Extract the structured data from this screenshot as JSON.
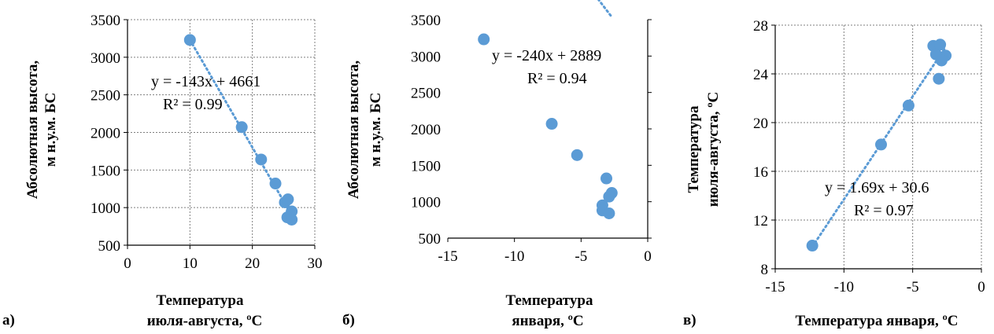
{
  "chart_data": [
    {
      "type": "scatter",
      "panel_label": "а)",
      "xlabel": [
        "Температура",
        "июля-августа, ºС"
      ],
      "ylabel": [
        "Абсолютная высота,",
        "м н.у.м. БС"
      ],
      "xlim": [
        0,
        30
      ],
      "ylim": [
        500,
        3500
      ],
      "xticks": [
        0,
        10,
        20,
        30
      ],
      "yticks": [
        500,
        1000,
        1500,
        2000,
        2500,
        3000,
        3500
      ],
      "xtick_labels": [
        "0",
        "10",
        "20",
        "30"
      ],
      "ytick_labels": [
        "500",
        "1000",
        "1500",
        "2000",
        "2500",
        "3000",
        "3500"
      ],
      "grid": true,
      "points": [
        {
          "x": 10,
          "y": 3230
        },
        {
          "x": 18.3,
          "y": 2070
        },
        {
          "x": 21.4,
          "y": 1640
        },
        {
          "x": 23.7,
          "y": 1320
        },
        {
          "x": 25.2,
          "y": 1070
        },
        {
          "x": 25.7,
          "y": 1110
        },
        {
          "x": 26.3,
          "y": 950
        },
        {
          "x": 25.6,
          "y": 870
        },
        {
          "x": 26.3,
          "y": 840
        }
      ],
      "trendline": {
        "slope": -143,
        "intercept": 4661,
        "x_range": [
          10,
          26.3
        ]
      },
      "equation": "y = -143x + 4661",
      "r2": "R² = 0.99"
    },
    {
      "type": "scatter",
      "panel_label": "б)",
      "xlabel": [
        "Температура",
        "января, ºС"
      ],
      "ylabel": [
        "Абсолютная высота,",
        "м н.у.м. БС"
      ],
      "xlim": [
        -15,
        0
      ],
      "ylim": [
        500,
        3500
      ],
      "xticks": [
        -15,
        -10,
        -5,
        0
      ],
      "yticks": [
        500,
        1000,
        1500,
        2000,
        2500,
        3000,
        3500
      ],
      "xtick_labels": [
        "-15",
        "-10",
        "-5",
        "0"
      ],
      "ytick_labels": [
        "500",
        "1000",
        "1500",
        "2000",
        "2500",
        "3000",
        "3500"
      ],
      "grid": false,
      "points": [
        {
          "x": -12.3,
          "y": 3230
        },
        {
          "x": -7.2,
          "y": 2070
        },
        {
          "x": -5.3,
          "y": 1640
        },
        {
          "x": -3.1,
          "y": 1320
        },
        {
          "x": -2.7,
          "y": 1120
        },
        {
          "x": -2.9,
          "y": 1070
        },
        {
          "x": -3.4,
          "y": 950
        },
        {
          "x": -3.4,
          "y": 880
        },
        {
          "x": -2.9,
          "y": 840
        }
      ],
      "trendline": {
        "slope": -240,
        "intercept": 2889,
        "x_range": [
          -12.3,
          -2.7
        ]
      },
      "equation": "y = -240x + 2889",
      "r2": "R² = 0.94"
    },
    {
      "type": "scatter",
      "panel_label": "в)",
      "xlabel": [
        "Температура января, ºС"
      ],
      "ylabel": [
        "Температура",
        "июля-августа, ºС"
      ],
      "xlim": [
        -15,
        0
      ],
      "ylim": [
        8,
        28
      ],
      "xticks": [
        -15,
        -10,
        -5,
        0
      ],
      "yticks": [
        8,
        12,
        16,
        20,
        24,
        28
      ],
      "xtick_labels": [
        "-15",
        "-10",
        "-5",
        "0"
      ],
      "ytick_labels": [
        "8",
        "12",
        "16",
        "20",
        "24",
        "28"
      ],
      "grid": true,
      "points": [
        {
          "x": -12.3,
          "y": 9.9
        },
        {
          "x": -7.3,
          "y": 18.2
        },
        {
          "x": -5.3,
          "y": 21.4
        },
        {
          "x": -3.1,
          "y": 23.6
        },
        {
          "x": -3.5,
          "y": 26.3
        },
        {
          "x": -3.0,
          "y": 26.4
        },
        {
          "x": -2.6,
          "y": 25.5
        },
        {
          "x": -3.3,
          "y": 25.6
        },
        {
          "x": -2.9,
          "y": 25.1
        }
      ],
      "trendline": {
        "slope": 1.69,
        "intercept": 30.6,
        "x_range": [
          -12.3,
          -2.6
        ]
      },
      "equation": "y = 1.69x + 30.6",
      "r2": "R² = 0.97"
    }
  ],
  "colors": {
    "marker": "#5b9bd5",
    "trendline": "#5b9bd5",
    "grid": "#7f7f7f",
    "axis": "#000000"
  }
}
